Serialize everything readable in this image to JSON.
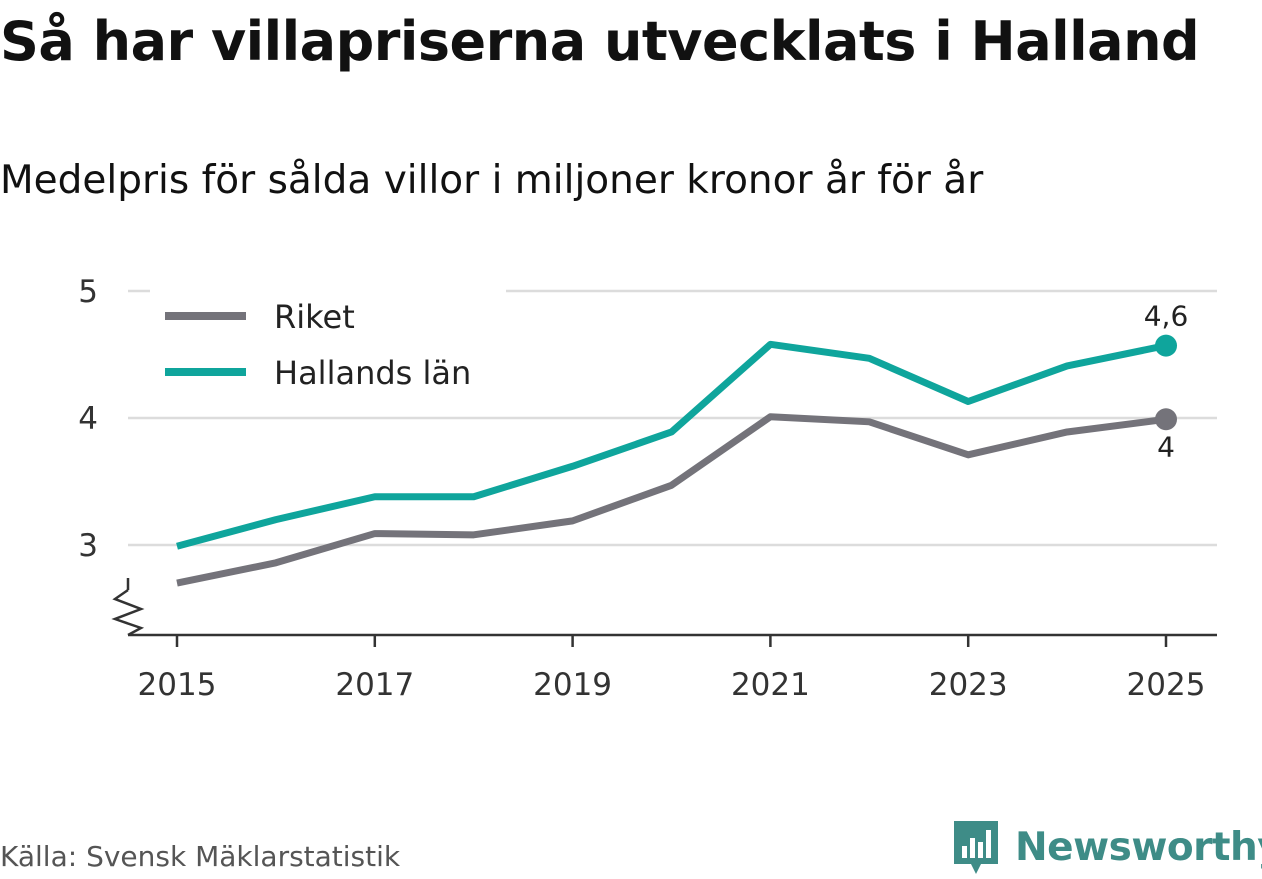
{
  "title": "Så har villapriserna utvecklats i Halland",
  "subtitle": "Medelpris för sålda villor i miljoner kronor år för år",
  "source": "Källa: Svensk Mäklarstatistik",
  "brand": {
    "name": "Newsworthy",
    "icon": "bar-chart-speech-bubble-icon",
    "color": "#3e8c87"
  },
  "chart_data": {
    "type": "line",
    "x": [
      2015,
      2016,
      2017,
      2018,
      2019,
      2020,
      2021,
      2022,
      2023,
      2024,
      2025
    ],
    "x_ticks": [
      2015,
      2017,
      2019,
      2021,
      2023,
      2025
    ],
    "y_ticks": [
      3,
      4,
      5
    ],
    "ylim": [
      2.3,
      5
    ],
    "axis_break": true,
    "grid": true,
    "legend_position": "top-left",
    "series": [
      {
        "name": "Riket",
        "color": "#74737a",
        "values": [
          2.7,
          2.86,
          3.09,
          3.08,
          3.19,
          3.47,
          4.01,
          3.97,
          3.71,
          3.89,
          3.99
        ],
        "end_label": "4"
      },
      {
        "name": "Hallands län",
        "color": "#0fa59c",
        "values": [
          2.99,
          3.2,
          3.38,
          3.38,
          3.62,
          3.89,
          4.58,
          4.47,
          4.13,
          4.41,
          4.57
        ],
        "end_label": "4,6"
      }
    ]
  }
}
